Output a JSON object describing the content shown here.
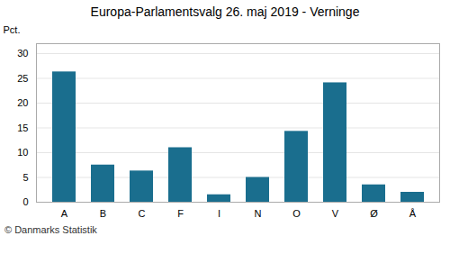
{
  "chart_data": {
    "type": "bar",
    "title": "Europa-Parlamentsvalg 26. maj 2019 - Verninge",
    "categories": [
      "A",
      "B",
      "C",
      "F",
      "I",
      "N",
      "O",
      "V",
      "Ø",
      "Å"
    ],
    "values": [
      26.3,
      7.5,
      6.3,
      11.0,
      1.5,
      5.0,
      14.3,
      24.1,
      3.5,
      2.0
    ],
    "color": "#1a6e8e",
    "ylabel": "Pct.",
    "ylim": [
      0,
      32
    ],
    "yticks": [
      0,
      5,
      10,
      15,
      20,
      25,
      30
    ],
    "grid": true,
    "annotations": [
      "© Danmarks Statistik"
    ]
  }
}
